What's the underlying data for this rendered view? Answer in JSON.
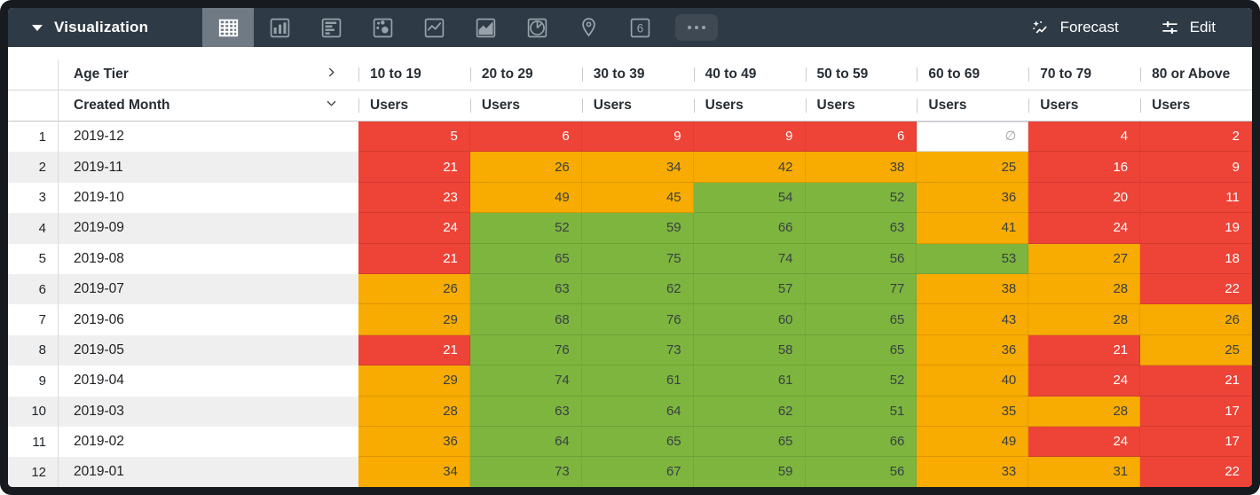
{
  "toolbar": {
    "title": "Visualization",
    "forecast_label": "Forecast",
    "edit_label": "Edit",
    "viz_types": [
      {
        "name": "table",
        "selected": true
      },
      {
        "name": "column-chart",
        "selected": false
      },
      {
        "name": "bar-chart",
        "selected": false
      },
      {
        "name": "scatter-plot",
        "selected": false
      },
      {
        "name": "line-chart",
        "selected": false
      },
      {
        "name": "area-chart",
        "selected": false
      },
      {
        "name": "pie-chart",
        "selected": false
      },
      {
        "name": "map",
        "selected": false
      },
      {
        "name": "single-value",
        "selected": false,
        "glyph": "6"
      },
      {
        "name": "more-options",
        "selected": false
      }
    ]
  },
  "table": {
    "pivot_field": "Age Tier",
    "row_field": "Created Month",
    "measure_label": "Users",
    "columns": [
      "10 to 19",
      "20 to 29",
      "30 to 39",
      "40 to 49",
      "50 to 59",
      "60 to 69",
      "70 to 79",
      "80 or Above"
    ],
    "null_symbol": "∅",
    "color_rules": {
      "red_if_below": 25,
      "green_if_at_least": 50
    },
    "rows": [
      {
        "index": 1,
        "month": "2019-12",
        "values": [
          5,
          6,
          9,
          9,
          6,
          null,
          4,
          2
        ]
      },
      {
        "index": 2,
        "month": "2019-11",
        "values": [
          21,
          26,
          34,
          42,
          38,
          25,
          16,
          9
        ]
      },
      {
        "index": 3,
        "month": "2019-10",
        "values": [
          23,
          49,
          45,
          54,
          52,
          36,
          20,
          11
        ]
      },
      {
        "index": 4,
        "month": "2019-09",
        "values": [
          24,
          52,
          59,
          66,
          63,
          41,
          24,
          19
        ]
      },
      {
        "index": 5,
        "month": "2019-08",
        "values": [
          21,
          65,
          75,
          74,
          56,
          53,
          27,
          18
        ]
      },
      {
        "index": 6,
        "month": "2019-07",
        "values": [
          26,
          63,
          62,
          57,
          77,
          38,
          28,
          22
        ]
      },
      {
        "index": 7,
        "month": "2019-06",
        "values": [
          29,
          68,
          76,
          60,
          65,
          43,
          28,
          26
        ]
      },
      {
        "index": 8,
        "month": "2019-05",
        "values": [
          21,
          76,
          73,
          58,
          65,
          36,
          21,
          25
        ]
      },
      {
        "index": 9,
        "month": "2019-04",
        "values": [
          29,
          74,
          61,
          61,
          52,
          40,
          24,
          21
        ]
      },
      {
        "index": 10,
        "month": "2019-03",
        "values": [
          28,
          63,
          64,
          62,
          51,
          35,
          28,
          17
        ]
      },
      {
        "index": 11,
        "month": "2019-02",
        "values": [
          36,
          64,
          65,
          65,
          66,
          49,
          24,
          17
        ]
      },
      {
        "index": 12,
        "month": "2019-01",
        "values": [
          34,
          73,
          67,
          59,
          56,
          33,
          31,
          22
        ]
      }
    ]
  },
  "colors": {
    "red": "#EE4337",
    "orange": "#F8AB00",
    "green": "#7DB53E",
    "toolbar": "#2E3A46",
    "selected_tab": "#6F7A85",
    "icon": "#98A2AB",
    "stripe": "#EFEFEF",
    "divider": "#D8DBDE",
    "null_text": "#9AA0A6"
  }
}
